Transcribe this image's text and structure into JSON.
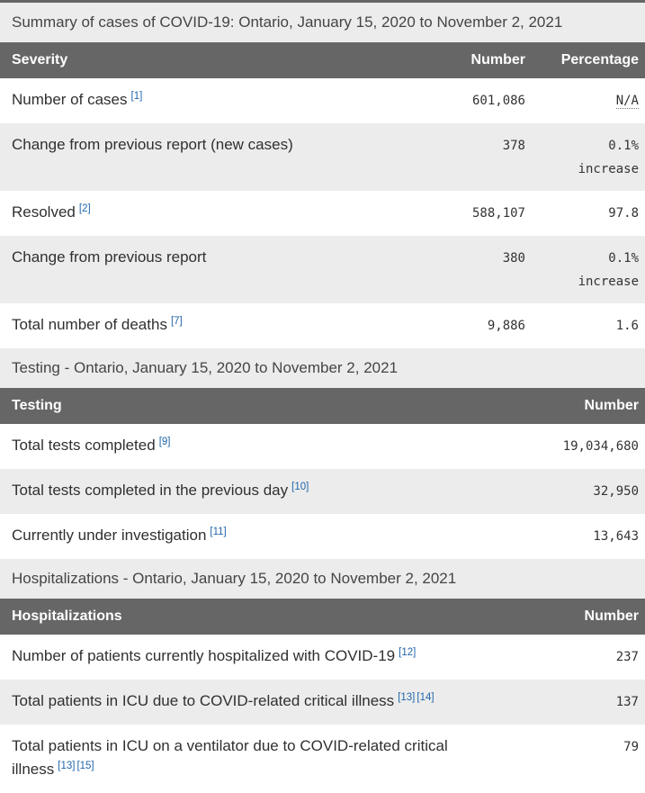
{
  "colors": {
    "header_bg": "#666666",
    "header_text": "#ffffff",
    "caption_bg": "#ececec",
    "stripe_bg": "#ececec",
    "body_text": "#303030",
    "link_blue": "#2166ac",
    "number_text": "#333333"
  },
  "tables": [
    {
      "caption": "Summary of cases of COVID-19: Ontario, January 15, 2020 to November 2, 2021",
      "columns": {
        "c0": "Severity",
        "c1": "Number",
        "c2": "Percentage"
      },
      "rows": [
        {
          "label": "Number of cases",
          "refs": {
            "r0": "[1]"
          },
          "number": "601,086",
          "pct": "N/A"
        },
        {
          "label": "Change from previous report (new cases)",
          "number": "378",
          "pct": "0.1%",
          "pct_note": "increase"
        },
        {
          "label": "Resolved",
          "refs": {
            "r0": "[2]"
          },
          "number": "588,107",
          "pct": "97.8"
        },
        {
          "label": "Change from previous report",
          "number": "380",
          "pct": "0.1%",
          "pct_note": "increase"
        },
        {
          "label": "Total number of deaths",
          "refs": {
            "r0": "[7]"
          },
          "number": "9,886",
          "pct": "1.6"
        }
      ]
    },
    {
      "caption": "Testing - Ontario, January 15, 2020 to November 2, 2021",
      "columns": {
        "c0": "Testing",
        "c1": "Number"
      },
      "rows": [
        {
          "label": "Total tests completed",
          "refs": {
            "r0": "[9]"
          },
          "number": "19,034,680"
        },
        {
          "label": "Total tests completed in the previous day",
          "refs": {
            "r0": "[10]"
          },
          "number": "32,950"
        },
        {
          "label": "Currently under investigation",
          "refs": {
            "r0": "[11]"
          },
          "number": "13,643"
        }
      ]
    },
    {
      "caption": "Hospitalizations - Ontario, January 15, 2020 to November 2, 2021",
      "columns": {
        "c0": "Hospitalizations",
        "c1": "Number"
      },
      "rows": [
        {
          "label": "Number of patients currently hospitalized with COVID-19",
          "refs": {
            "r0": "[12]"
          },
          "number": "237"
        },
        {
          "label": "Total patients in ICU due to COVID-related critical illness",
          "refs": {
            "r0": "[13]",
            "r1": "[14]"
          },
          "number": "137"
        },
        {
          "label": "Total patients in ICU on a ventilator due to COVID-related critical illness",
          "refs": {
            "r0": "[13]",
            "r1": "[15]"
          },
          "number": "79"
        }
      ]
    }
  ]
}
